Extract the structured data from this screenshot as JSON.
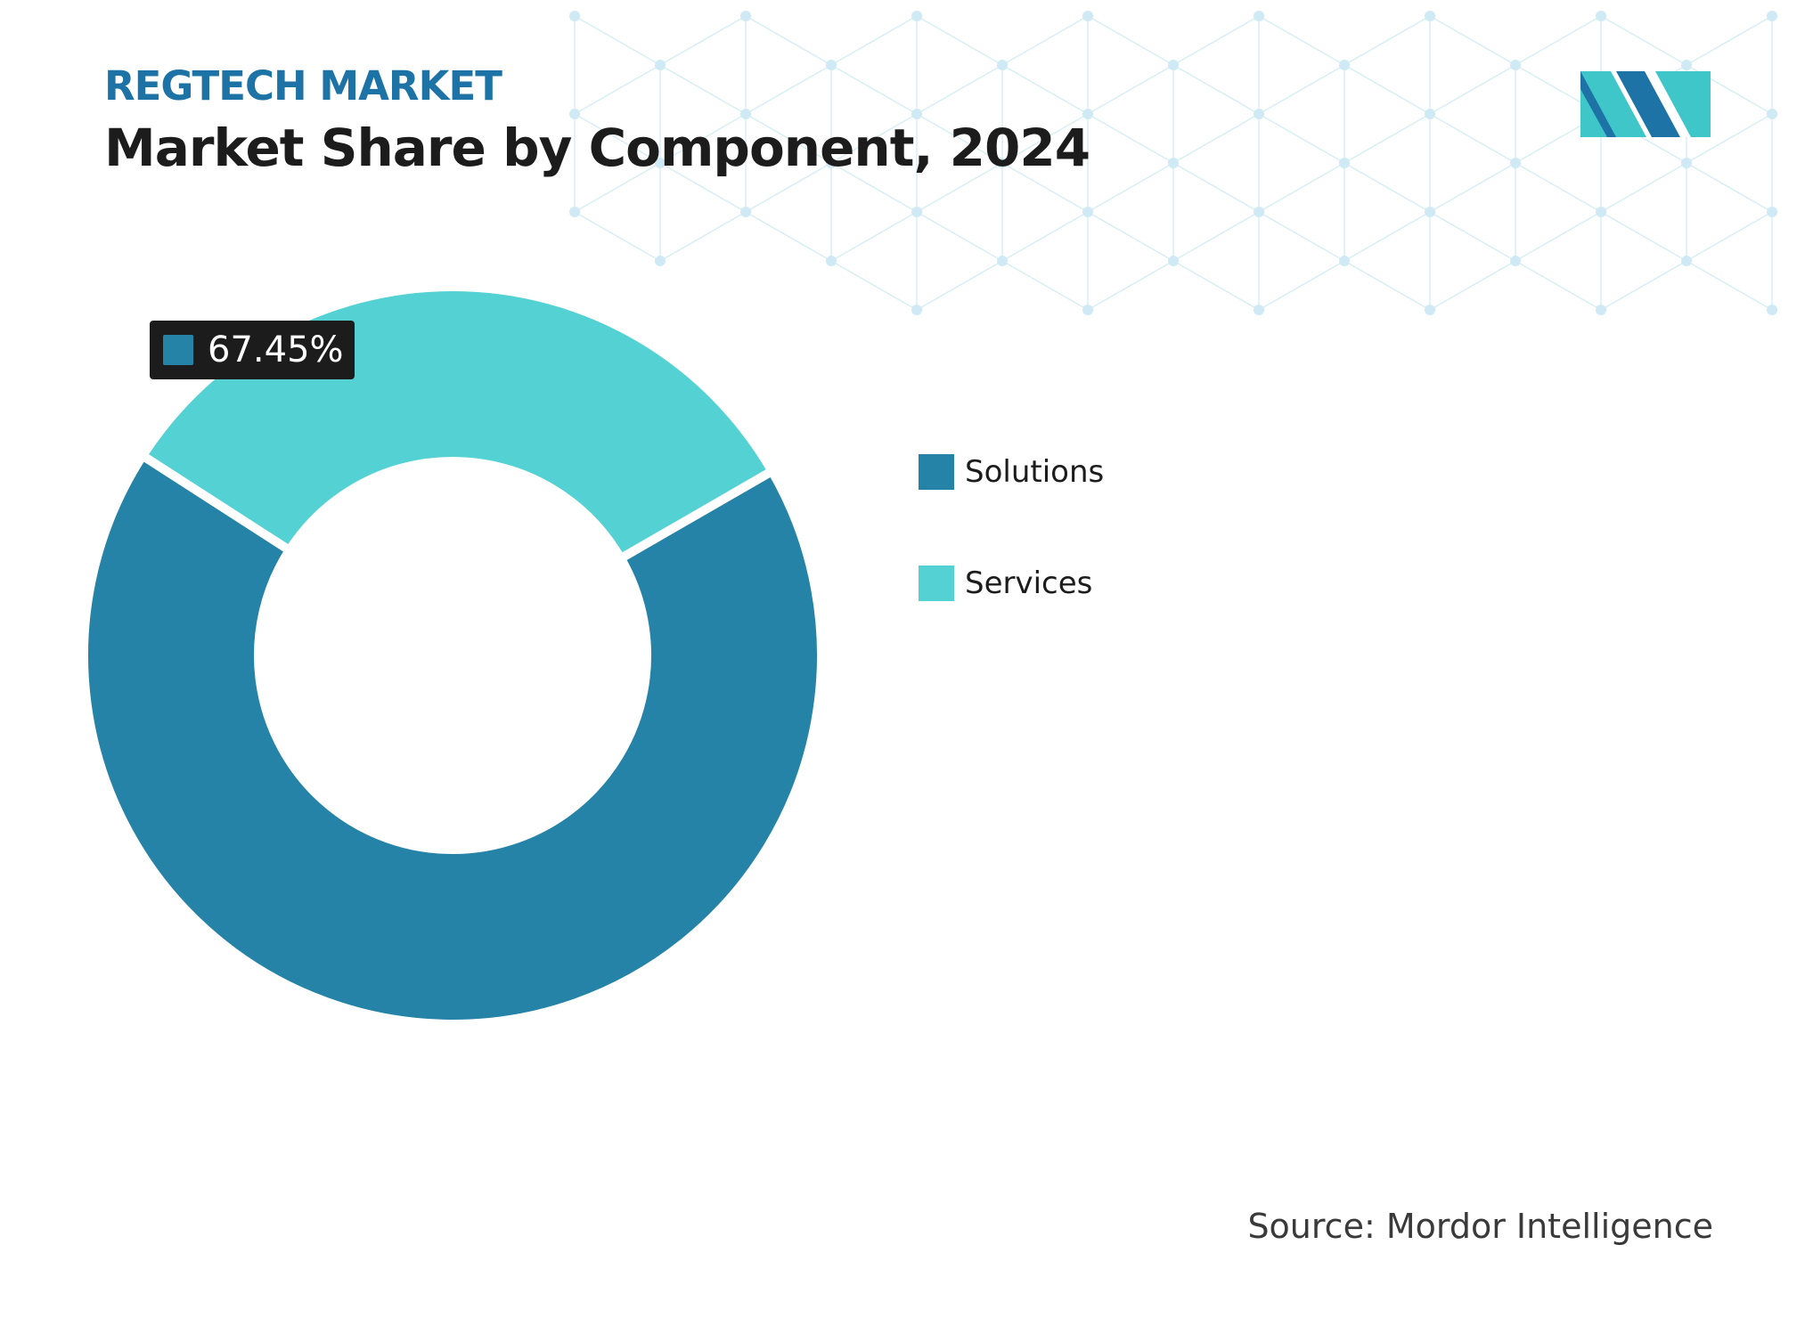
{
  "header": {
    "eyebrow": "REGTECH MARKET",
    "title": "Market Share by Component, 2024"
  },
  "logo": {
    "icon": "mordor-intelligence-logo-icon",
    "colors": [
      "#1e73a6",
      "#3ec6c8"
    ]
  },
  "chart_data": {
    "type": "pie",
    "variant": "donut",
    "categories": [
      "Solutions",
      "Services"
    ],
    "values": [
      67.45,
      32.55
    ],
    "colors": [
      "#2683a8",
      "#53d1d3"
    ],
    "data_labels": [
      "67.45%"
    ],
    "legend_position": "right",
    "title": "Market Share by Component, 2024"
  },
  "callout": {
    "value": "67.45%"
  },
  "legend": {
    "items": [
      {
        "label": "Solutions",
        "color": "#2683a8"
      },
      {
        "label": "Services",
        "color": "#53d1d3"
      }
    ]
  },
  "footer": {
    "source": "Source: Mordor Intelligence"
  }
}
